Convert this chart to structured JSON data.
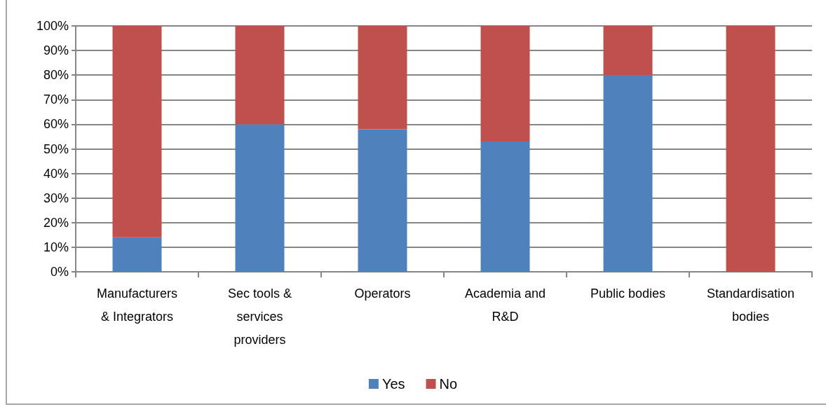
{
  "chart_data": {
    "type": "bar",
    "stacked": true,
    "categories": [
      "Manufacturers & Integrators",
      "Sec tools & services providers",
      "Operators",
      "Academia and R&D",
      "Public bodies",
      "Standardisation bodies"
    ],
    "series": [
      {
        "name": "Yes",
        "color": "#4f81bd",
        "values": [
          14,
          60,
          58,
          53,
          80,
          0
        ]
      },
      {
        "name": "No",
        "color": "#c0504d",
        "values": [
          86,
          40,
          42,
          47,
          20,
          100
        ]
      }
    ],
    "ylim": [
      0,
      100
    ],
    "yticks": [
      {
        "value": 0,
        "label": "0%"
      },
      {
        "value": 10,
        "label": "10%"
      },
      {
        "value": 20,
        "label": "20%"
      },
      {
        "value": 30,
        "label": "30%"
      },
      {
        "value": 40,
        "label": "40%"
      },
      {
        "value": 50,
        "label": "50%"
      },
      {
        "value": 60,
        "label": "60%"
      },
      {
        "value": 70,
        "label": "70%"
      },
      {
        "value": 80,
        "label": "80%"
      },
      {
        "value": 90,
        "label": "90%"
      },
      {
        "value": 100,
        "label": "100%"
      }
    ],
    "grid": "y",
    "legend": "bottom"
  }
}
